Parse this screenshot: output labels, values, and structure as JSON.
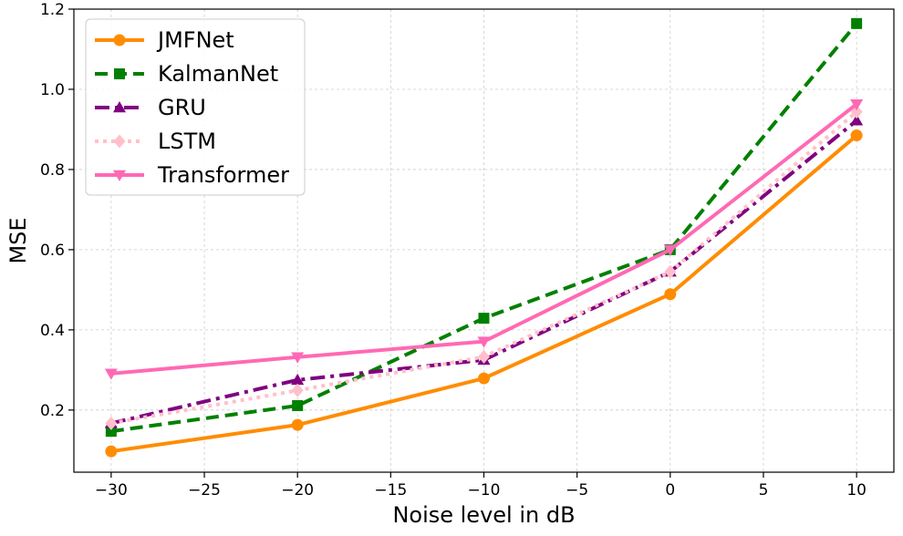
{
  "chart_data": {
    "type": "line",
    "title": "",
    "xlabel": "Noise level in dB",
    "ylabel": "MSE",
    "x": [
      -30,
      -20,
      -10,
      0,
      10
    ],
    "xlim": [
      -32,
      12
    ],
    "ylim": [
      0.045,
      1.2
    ],
    "xticks": [
      -30,
      -25,
      -20,
      -15,
      -10,
      -5,
      0,
      5,
      10
    ],
    "xtick_labels": [
      "−30",
      "−25",
      "−20",
      "−15",
      "−10",
      "−5",
      "0",
      "5",
      "10"
    ],
    "yticks": [
      0.2,
      0.4,
      0.6,
      0.8,
      1.0,
      1.2
    ],
    "ytick_labels": [
      "0.2",
      "0.4",
      "0.6",
      "0.8",
      "1.0",
      "1.2"
    ],
    "grid": true,
    "legend_position": "top-left",
    "series": [
      {
        "name": "JMFNet",
        "values": [
          0.097,
          0.163,
          0.279,
          0.489,
          0.885
        ],
        "color": "#ff8c00",
        "dash": "solid",
        "marker": "circle"
      },
      {
        "name": "KalmanNet",
        "values": [
          0.147,
          0.211,
          0.429,
          0.6,
          1.164
        ],
        "color": "#008000",
        "dash": "dashed",
        "marker": "square"
      },
      {
        "name": "GRU",
        "values": [
          0.167,
          0.275,
          0.325,
          0.545,
          0.922
        ],
        "color": "#800080",
        "dash": "dashdot",
        "marker": "triangle-up"
      },
      {
        "name": "LSTM",
        "values": [
          0.167,
          0.249,
          0.333,
          0.545,
          0.944
        ],
        "color": "#ffc0cb",
        "dash": "dotted",
        "marker": "diamond"
      },
      {
        "name": "Transformer",
        "values": [
          0.291,
          0.332,
          0.371,
          0.6,
          0.963
        ],
        "color": "#ff69b4",
        "dash": "solid",
        "marker": "triangle-down"
      }
    ]
  }
}
